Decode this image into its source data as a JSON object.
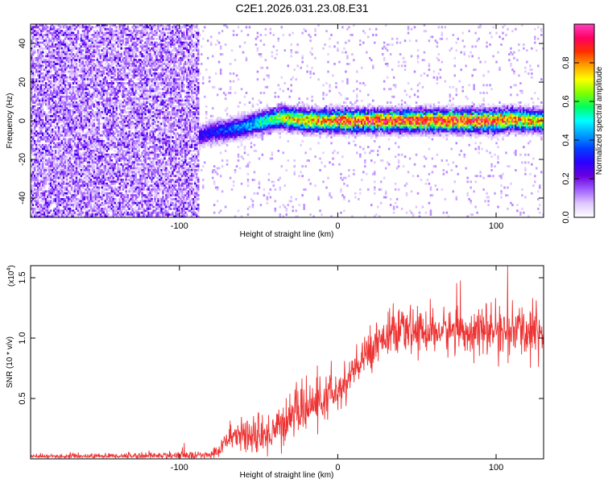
{
  "title": "C2E1.2026.031.23.08.E31",
  "chart_data": [
    {
      "type": "heatmap",
      "name": "spectrogram",
      "xlabel": "Height of straight line (km)",
      "ylabel": "Frequency (Hz)",
      "xlim": [
        -194,
        130
      ],
      "ylim": [
        -50,
        50
      ],
      "xticks": [
        -100,
        0,
        100
      ],
      "yticks": [
        -40,
        -20,
        0,
        20,
        40
      ],
      "colorbar": {
        "label": "Normalized spectral amplitude",
        "range": [
          0,
          1
        ],
        "ticks": [
          0.0,
          0.2,
          0.4,
          0.6,
          0.8
        ],
        "colors": [
          "#ffffff",
          "#e0c8ff",
          "#a060ff",
          "#6a00e0",
          "#2a00ff",
          "#0040ff",
          "#00a0ff",
          "#00ffff",
          "#00ff60",
          "#80ff00",
          "#ffff00",
          "#ffa000",
          "#ff3000",
          "#ff0060",
          "#ff40c0"
        ]
      },
      "description_points": {
        "noise_region_x": [
          -194,
          -88
        ],
        "signal_start_x": -88,
        "ridge_x": [
          -88,
          -80,
          -70,
          -60,
          -50,
          -40,
          -35,
          -30,
          -20,
          -10,
          0,
          20,
          40,
          60,
          80,
          100,
          110,
          120,
          130
        ],
        "ridge_f": [
          -8,
          -6,
          -5,
          -3,
          -1,
          1,
          2,
          1,
          0,
          0,
          0,
          0,
          0,
          0,
          0,
          0,
          1,
          0,
          0
        ],
        "ridge_amp": [
          0.3,
          0.35,
          0.4,
          0.45,
          0.55,
          0.65,
          0.75,
          0.8,
          0.85,
          0.9,
          0.95,
          1.0,
          1.0,
          1.0,
          1.0,
          0.95,
          0.9,
          0.85,
          0.8
        ]
      }
    },
    {
      "type": "line",
      "name": "snr",
      "xlabel": "Height of straight line (km)",
      "ylabel": "SNR (10 * v/v)",
      "scale_label": "(x10^4)",
      "scale_main": "(x10",
      "scale_exp": "4",
      "xlim": [
        -194,
        130
      ],
      "ylim": [
        0,
        1.6
      ],
      "xticks": [
        -100,
        0,
        100
      ],
      "yticks": [
        0.5,
        1.0,
        1.5
      ],
      "ytick_labels": [
        "0.5",
        "1.0",
        "1.5"
      ],
      "color": "#ee3333",
      "trend_x": [
        -194,
        -80,
        -75,
        -70,
        -65,
        -60,
        -55,
        -50,
        -45,
        -40,
        -35,
        -30,
        -25,
        -20,
        -15,
        -10,
        -5,
        0,
        5,
        10,
        15,
        20,
        25,
        30,
        40,
        50,
        60,
        70,
        80,
        90,
        100,
        110,
        120,
        130
      ],
      "trend_y": [
        0.02,
        0.03,
        0.08,
        0.15,
        0.2,
        0.22,
        0.18,
        0.15,
        0.2,
        0.25,
        0.28,
        0.35,
        0.4,
        0.42,
        0.45,
        0.48,
        0.52,
        0.55,
        0.62,
        0.72,
        0.8,
        0.9,
        0.98,
        1.02,
        1.05,
        1.06,
        1.05,
        1.06,
        1.07,
        1.05,
        1.06,
        1.05,
        1.06,
        1.05
      ],
      "noise_amp_x": [
        -194,
        -80,
        -60,
        -40,
        -20,
        0,
        30,
        100,
        130
      ],
      "noise_amp_y": [
        0.01,
        0.03,
        0.12,
        0.15,
        0.16,
        0.15,
        0.14,
        0.16,
        0.2
      ]
    }
  ]
}
